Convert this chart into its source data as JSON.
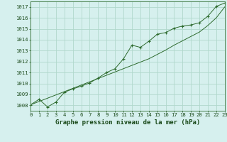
{
  "title": "Graphe pression niveau de la mer (hPa)",
  "background_color": "#d6f0ee",
  "grid_color": "#b0d8cc",
  "line_color": "#2d6a2d",
  "x_values": [
    0,
    1,
    2,
    3,
    4,
    5,
    6,
    7,
    8,
    9,
    10,
    11,
    12,
    13,
    14,
    15,
    16,
    17,
    18,
    19,
    20,
    21,
    22,
    23
  ],
  "y_main": [
    1008.05,
    1008.55,
    1007.85,
    1008.3,
    1009.2,
    1009.5,
    1009.75,
    1010.05,
    1010.5,
    1011.0,
    1011.35,
    1012.25,
    1013.5,
    1013.3,
    1013.85,
    1014.5,
    1014.65,
    1015.05,
    1015.25,
    1015.35,
    1015.55,
    1016.15,
    1017.05,
    1017.35
  ],
  "y_trend": [
    1008.05,
    1008.35,
    1008.65,
    1008.95,
    1009.25,
    1009.55,
    1009.85,
    1010.15,
    1010.45,
    1010.75,
    1011.05,
    1011.35,
    1011.65,
    1011.95,
    1012.25,
    1012.65,
    1013.05,
    1013.5,
    1013.9,
    1014.3,
    1014.7,
    1015.3,
    1016.0,
    1017.0
  ],
  "xlim": [
    0,
    23
  ],
  "ylim": [
    1007.5,
    1017.5
  ],
  "yticks": [
    1008,
    1009,
    1010,
    1011,
    1012,
    1013,
    1014,
    1015,
    1016,
    1017
  ],
  "xticks": [
    0,
    1,
    2,
    3,
    4,
    5,
    6,
    7,
    8,
    9,
    10,
    11,
    12,
    13,
    14,
    15,
    16,
    17,
    18,
    19,
    20,
    21,
    22,
    23
  ],
  "tick_fontsize": 5.2,
  "title_fontsize": 6.5,
  "title_color": "#1a4a1a",
  "axis_color": "#2d6a2d",
  "tick_color": "#1a4a1a"
}
